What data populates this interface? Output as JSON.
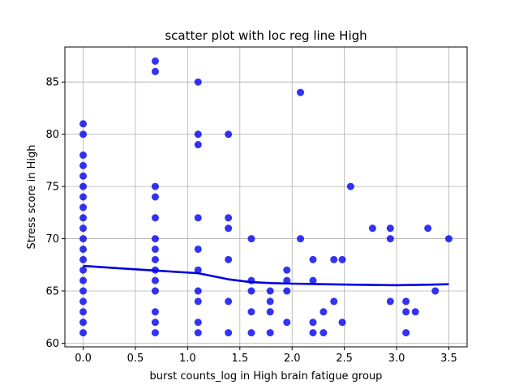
{
  "chart_data": {
    "type": "scatter",
    "title": "scatter plot with loc reg line High",
    "xlabel": "burst counts_log in High brain fatigue group",
    "ylabel": "Stress score in High",
    "xlim": [
      -0.175,
      3.675
    ],
    "ylim": [
      59.65,
      88.35
    ],
    "xticks": [
      0.0,
      0.5,
      1.0,
      1.5,
      2.0,
      2.5,
      3.0,
      3.5
    ],
    "yticks": [
      60,
      65,
      70,
      75,
      80,
      85
    ],
    "grid": true,
    "point_color": "#0000ee",
    "line_color": "#0000dd",
    "points": [
      {
        "x": 0.0,
        "y": 81
      },
      {
        "x": 0.0,
        "y": 80
      },
      {
        "x": 0.0,
        "y": 78
      },
      {
        "x": 0.0,
        "y": 77
      },
      {
        "x": 0.0,
        "y": 76
      },
      {
        "x": 0.0,
        "y": 75
      },
      {
        "x": 0.0,
        "y": 74
      },
      {
        "x": 0.0,
        "y": 73
      },
      {
        "x": 0.0,
        "y": 72
      },
      {
        "x": 0.0,
        "y": 71
      },
      {
        "x": 0.0,
        "y": 70
      },
      {
        "x": 0.0,
        "y": 69
      },
      {
        "x": 0.0,
        "y": 68
      },
      {
        "x": 0.0,
        "y": 67
      },
      {
        "x": 0.0,
        "y": 66
      },
      {
        "x": 0.0,
        "y": 65
      },
      {
        "x": 0.0,
        "y": 64
      },
      {
        "x": 0.0,
        "y": 63
      },
      {
        "x": 0.0,
        "y": 62
      },
      {
        "x": 0.0,
        "y": 61
      },
      {
        "x": 0.69,
        "y": 87
      },
      {
        "x": 0.69,
        "y": 86
      },
      {
        "x": 0.69,
        "y": 75
      },
      {
        "x": 0.69,
        "y": 74
      },
      {
        "x": 0.69,
        "y": 72
      },
      {
        "x": 0.69,
        "y": 70
      },
      {
        "x": 0.69,
        "y": 69
      },
      {
        "x": 0.69,
        "y": 68
      },
      {
        "x": 0.69,
        "y": 67
      },
      {
        "x": 0.69,
        "y": 66
      },
      {
        "x": 0.69,
        "y": 65
      },
      {
        "x": 0.69,
        "y": 63
      },
      {
        "x": 0.69,
        "y": 62
      },
      {
        "x": 0.69,
        "y": 61
      },
      {
        "x": 1.1,
        "y": 85
      },
      {
        "x": 1.1,
        "y": 80
      },
      {
        "x": 1.1,
        "y": 79
      },
      {
        "x": 1.1,
        "y": 72
      },
      {
        "x": 1.1,
        "y": 69
      },
      {
        "x": 1.1,
        "y": 67
      },
      {
        "x": 1.1,
        "y": 65
      },
      {
        "x": 1.1,
        "y": 64
      },
      {
        "x": 1.1,
        "y": 62
      },
      {
        "x": 1.1,
        "y": 61
      },
      {
        "x": 1.39,
        "y": 80
      },
      {
        "x": 1.39,
        "y": 72
      },
      {
        "x": 1.39,
        "y": 71
      },
      {
        "x": 1.39,
        "y": 68
      },
      {
        "x": 1.39,
        "y": 64
      },
      {
        "x": 1.39,
        "y": 61
      },
      {
        "x": 1.61,
        "y": 70
      },
      {
        "x": 1.61,
        "y": 66
      },
      {
        "x": 1.61,
        "y": 65
      },
      {
        "x": 1.61,
        "y": 63
      },
      {
        "x": 1.61,
        "y": 61
      },
      {
        "x": 1.79,
        "y": 65
      },
      {
        "x": 1.79,
        "y": 64
      },
      {
        "x": 1.79,
        "y": 63
      },
      {
        "x": 1.79,
        "y": 61
      },
      {
        "x": 1.95,
        "y": 67
      },
      {
        "x": 1.95,
        "y": 66
      },
      {
        "x": 1.95,
        "y": 65
      },
      {
        "x": 1.95,
        "y": 62
      },
      {
        "x": 2.08,
        "y": 84
      },
      {
        "x": 2.08,
        "y": 70
      },
      {
        "x": 2.2,
        "y": 68
      },
      {
        "x": 2.2,
        "y": 66
      },
      {
        "x": 2.2,
        "y": 62
      },
      {
        "x": 2.2,
        "y": 61
      },
      {
        "x": 2.3,
        "y": 63
      },
      {
        "x": 2.3,
        "y": 61
      },
      {
        "x": 2.4,
        "y": 68
      },
      {
        "x": 2.4,
        "y": 64
      },
      {
        "x": 2.48,
        "y": 68
      },
      {
        "x": 2.48,
        "y": 62
      },
      {
        "x": 2.56,
        "y": 75
      },
      {
        "x": 2.77,
        "y": 71
      },
      {
        "x": 2.94,
        "y": 71
      },
      {
        "x": 2.94,
        "y": 70
      },
      {
        "x": 2.94,
        "y": 64
      },
      {
        "x": 3.09,
        "y": 64
      },
      {
        "x": 3.09,
        "y": 63
      },
      {
        "x": 3.09,
        "y": 61
      },
      {
        "x": 3.18,
        "y": 63
      },
      {
        "x": 3.3,
        "y": 71
      },
      {
        "x": 3.37,
        "y": 65
      },
      {
        "x": 3.5,
        "y": 70
      }
    ],
    "loc_reg_line": {
      "x": [
        0.0,
        0.3,
        0.7,
        1.1,
        1.4,
        1.6,
        1.8,
        2.0,
        2.3,
        2.6,
        3.0,
        3.3,
        3.5
      ],
      "y": [
        67.4,
        67.2,
        66.95,
        66.7,
        66.1,
        65.85,
        65.75,
        65.7,
        65.65,
        65.6,
        65.55,
        65.6,
        65.65
      ]
    }
  }
}
